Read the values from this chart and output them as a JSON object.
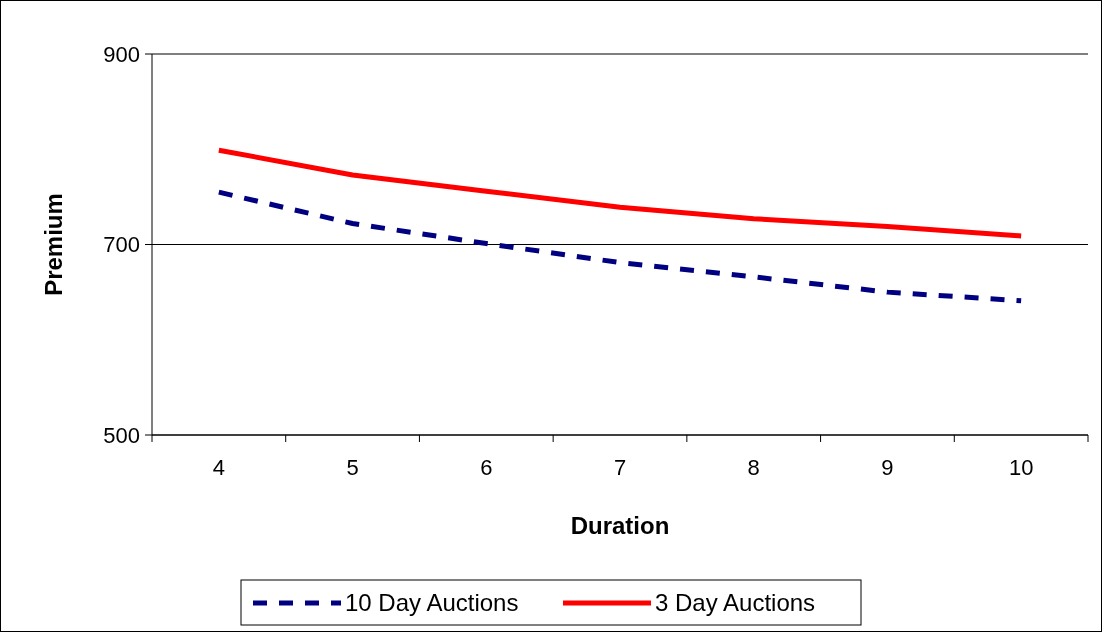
{
  "chart_data": {
    "type": "line",
    "xlabel": "Duration",
    "ylabel": "Premium",
    "categories": [
      "4",
      "5",
      "6",
      "7",
      "8",
      "9",
      "10"
    ],
    "series": [
      {
        "name": "10 Day Auctions",
        "color": "#000080",
        "line_style": "dashed",
        "values": [
          755,
          722,
          701,
          681,
          666,
          650,
          641
        ]
      },
      {
        "name": "3 Day Auctions",
        "color": "#ff0000",
        "line_style": "solid",
        "values": [
          799,
          773,
          756,
          739,
          727,
          719,
          709
        ]
      }
    ],
    "ylim": [
      500,
      900
    ],
    "yticks": [
      500,
      700,
      900
    ],
    "grid": "y",
    "legend": "bottom",
    "marker": "none"
  }
}
